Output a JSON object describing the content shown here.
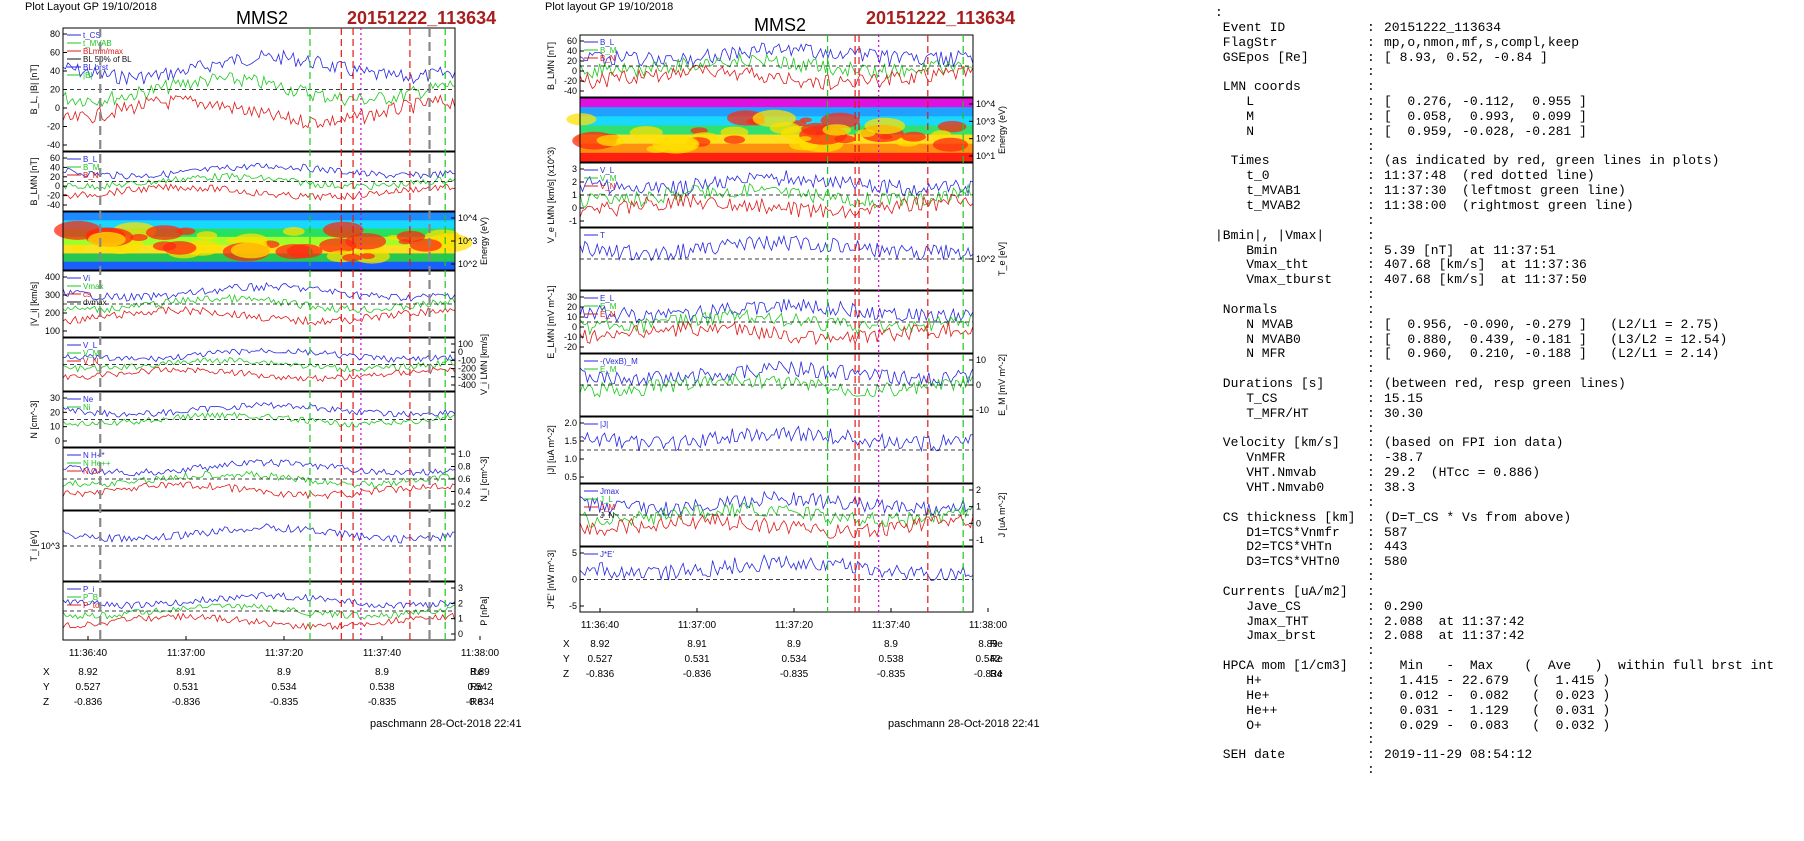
{
  "left_plot": {
    "header": "Plot Layout GP 19/10/2018",
    "spacecraft": "MMS2",
    "event_id": "20151222_113634",
    "footer": "paschmann 28-Oct-2018 22:41",
    "time_ticks": [
      "11:36:40",
      "11:37:00",
      "11:37:20",
      "11:37:40",
      "11:38:00"
    ],
    "orbit_table": {
      "rows": [
        {
          "label": "X",
          "values": [
            "8.92",
            "8.91",
            "8.9",
            "8.9",
            "8.89"
          ],
          "unit": "Re"
        },
        {
          "label": "Y",
          "values": [
            "0.527",
            "0.531",
            "0.534",
            "0.538",
            "0.542"
          ],
          "unit": "Re"
        },
        {
          "label": "Z",
          "values": [
            "-0.836",
            "-0.836",
            "-0.835",
            "-0.835",
            "-0.834"
          ],
          "unit": "Re"
        }
      ]
    },
    "panels": [
      {
        "ylabel": "B_L, |B| [nT]",
        "ticks": [
          "80",
          "60",
          "40",
          "20",
          "0",
          "-20",
          "-40"
        ],
        "legend": [
          "t_CS",
          "t_MVAB",
          "BLmin/max",
          "BL 50% of BL",
          "BL brst",
          "|B|"
        ]
      },
      {
        "ylabel": "B_LMN [nT]",
        "ticks": [
          "60",
          "40",
          "20",
          "0",
          "-20",
          "-40"
        ],
        "legend": [
          "B_L",
          "B_M",
          "B_N"
        ]
      },
      {
        "ylabel": "Energy (eV)",
        "right_ticks": [
          "10^4",
          "10^3",
          "10^2"
        ]
      },
      {
        "ylabel": "|V_i| [km/s]",
        "ticks": [
          "400",
          "300",
          "200",
          "100"
        ],
        "legend": [
          "Vi",
          "Vmax",
          "cs",
          "dvmax"
        ]
      },
      {
        "ylabel": "V_i LMN [km/s]",
        "right_ticks": [
          "100",
          "0",
          "-100",
          "-200",
          "-300",
          "-400"
        ],
        "legend": [
          "V_L",
          "V_M",
          "V_N"
        ]
      },
      {
        "ylabel": "N [cm^-3]",
        "ticks": [
          "30",
          "20",
          "10",
          "0"
        ],
        "legend": [
          "Ne",
          "Ni"
        ]
      },
      {
        "ylabel": "N_i [cm^-3]",
        "right_ticks": [
          "1.0",
          "0.8",
          "0.6",
          "0.4",
          "0.2"
        ],
        "legend": [
          "N H+*",
          "N He++",
          "N O+"
        ]
      },
      {
        "ylabel": "T_i [eV]",
        "ticks": [
          "10^3"
        ]
      },
      {
        "ylabel": "P [nPa]",
        "right_ticks": [
          "3",
          "2",
          "1",
          "0"
        ],
        "legend": [
          "P_i",
          "P_B",
          "P_tot"
        ]
      }
    ]
  },
  "right_plot": {
    "header": "Plot layout GP 19/10/2018",
    "spacecraft": "MMS2",
    "event_id": "20151222_113634",
    "footer": "paschmann 28-Oct-2018 22:41",
    "time_ticks": [
      "11:36:40",
      "11:37:00",
      "11:37:20",
      "11:37:40",
      "11:38:00"
    ],
    "orbit_table": {
      "rows": [
        {
          "label": "X",
          "values": [
            "8.92",
            "8.91",
            "8.9",
            "8.9",
            "8.89"
          ],
          "unit": "Re"
        },
        {
          "label": "Y",
          "values": [
            "0.527",
            "0.531",
            "0.534",
            "0.538",
            "0.542"
          ],
          "unit": "Re"
        },
        {
          "label": "Z",
          "values": [
            "-0.836",
            "-0.836",
            "-0.835",
            "-0.835",
            "-0.834"
          ],
          "unit": "Re"
        }
      ]
    },
    "panels": [
      {
        "ylabel": "B_LMN [nT]",
        "ticks": [
          "60",
          "40",
          "20",
          "0",
          "-20",
          "-40"
        ],
        "legend": [
          "B_L",
          "B_M",
          "B_N"
        ]
      },
      {
        "ylabel": "Energy (eV)",
        "right_ticks": [
          "10^4",
          "10^3",
          "10^2",
          "10^1"
        ]
      },
      {
        "ylabel": "V_e LMN [km/s] (x10^3)",
        "ticks": [
          "3",
          "2",
          "1",
          "0",
          "-1"
        ],
        "legend": [
          "V_L",
          "V_M",
          "V_N"
        ]
      },
      {
        "ylabel": "T_e [eV]",
        "right_ticks": [
          "10^2"
        ],
        "legend": [
          "T"
        ]
      },
      {
        "ylabel": "E_LMN [mV m^-1]",
        "ticks": [
          "30",
          "20",
          "10",
          "0",
          "-10",
          "-20"
        ],
        "legend": [
          "E_L",
          "E_M",
          "E_N"
        ]
      },
      {
        "ylabel": "E_M [mV m^-2]",
        "right_ticks": [
          "10",
          "0",
          "-10"
        ],
        "legend": [
          "-(VexB)_M",
          "E_M"
        ]
      },
      {
        "ylabel": "|J| [uA m^-2]",
        "ticks": [
          "2.0",
          "1.5",
          "1.0",
          "0.5"
        ],
        "legend": [
          "|J|"
        ]
      },
      {
        "ylabel": "J [uA m^-2]",
        "right_ticks": [
          "2",
          "1",
          "0",
          "-1"
        ],
        "legend": [
          "Jmax",
          "J_L",
          "J_M",
          "J_N"
        ]
      },
      {
        "ylabel": "J*E' [nW m^-3]",
        "ticks": [
          "5",
          "0",
          "-5"
        ],
        "legend": [
          "J*E'"
        ]
      }
    ]
  },
  "summary": {
    "leading": ":",
    "rows": [
      {
        "k": " Event ID",
        "v": "20151222_113634"
      },
      {
        "k": " FlagStr",
        "v": "mp,o,nmon,mf,s,compl,keep"
      },
      {
        "k": " GSEpos [Re]",
        "v": "[ 8.93, 0.52, -0.84 ]"
      },
      {
        "k": "",
        "v": ""
      },
      {
        "k": " LMN coords",
        "v": ""
      },
      {
        "k": "    L",
        "v": "[  0.276, -0.112,  0.955 ]"
      },
      {
        "k": "    M",
        "v": "[  0.058,  0.993,  0.099 ]"
      },
      {
        "k": "    N",
        "v": "[  0.959, -0.028, -0.281 ]"
      },
      {
        "k": "",
        "v": ""
      },
      {
        "k": "  Times",
        "v": "(as indicated by red, green lines in plots)"
      },
      {
        "k": "    t_0",
        "v": "11:37:48  (red dotted line)"
      },
      {
        "k": "    t_MVAB1",
        "v": "11:37:30  (leftmost green line)"
      },
      {
        "k": "    t_MVAB2",
        "v": "11:38:00  (rightmost green line)"
      },
      {
        "k": "",
        "v": ""
      },
      {
        "k": "|Bmin|, |Vmax|",
        "v": ""
      },
      {
        "k": "    Bmin",
        "v": "5.39 [nT]  at 11:37:51"
      },
      {
        "k": "    Vmax_tht",
        "v": "407.68 [km/s]  at 11:37:36"
      },
      {
        "k": "    Vmax_tburst",
        "v": "407.68 [km/s]  at 11:37:50"
      },
      {
        "k": "",
        "v": ""
      },
      {
        "k": " Normals",
        "v": ""
      },
      {
        "k": "    N MVAB",
        "v": "[  0.956, -0.090, -0.279 ]   (L2/L1 = 2.75)"
      },
      {
        "k": "    N MVAB0",
        "v": "[  0.880,  0.439, -0.181 ]   (L3/L2 = 12.54)"
      },
      {
        "k": "    N MFR",
        "v": "[  0.960,  0.210, -0.188 ]   (L2/L1 = 2.14)"
      },
      {
        "k": "",
        "v": ""
      },
      {
        "k": " Durations [s]",
        "v": "(between red, resp green lines)"
      },
      {
        "k": "    T_CS",
        "v": "15.15"
      },
      {
        "k": "    T_MFR/HT",
        "v": "30.30"
      },
      {
        "k": "",
        "v": ""
      },
      {
        "k": " Velocity [km/s]",
        "v": "(based on FPI ion data)"
      },
      {
        "k": "    VnMFR",
        "v": "-38.7"
      },
      {
        "k": "    VHT.Nmvab",
        "v": "29.2  (HTcc = 0.886)"
      },
      {
        "k": "    VHT.Nmvab0",
        "v": "38.3"
      },
      {
        "k": "",
        "v": ""
      },
      {
        "k": " CS thickness [km]",
        "v": "(D=T_CS * Vs from above)"
      },
      {
        "k": "    D1=TCS*Vnmfr",
        "v": "587"
      },
      {
        "k": "    D2=TCS*VHTn",
        "v": "443"
      },
      {
        "k": "    D3=TCS*VHTn0",
        "v": "580"
      },
      {
        "k": "",
        "v": ""
      },
      {
        "k": " Currents [uA/m2]",
        "v": ""
      },
      {
        "k": "    Jave_CS",
        "v": "0.290"
      },
      {
        "k": "    Jmax_THT",
        "v": "2.088  at 11:37:42"
      },
      {
        "k": "    Jmax_brst",
        "v": "2.088  at 11:37:42"
      },
      {
        "k": "",
        "v": ""
      },
      {
        "k": " HPCA mom [1/cm3]",
        "v": "  Min   -  Max    (  Ave   )  within full brst int"
      },
      {
        "k": "    H+",
        "v": "  1.415 - 22.679   (  1.415 )"
      },
      {
        "k": "    He+",
        "v": "  0.012 -  0.082   (  0.023 )"
      },
      {
        "k": "    He++",
        "v": "  0.031 -  1.129   (  0.031 )"
      },
      {
        "k": "    O+",
        "v": "  0.029 -  0.083   (  0.032 )"
      },
      {
        "k": "",
        "v": ""
      },
      {
        "k": " SEH date",
        "v": "2019-11-29 08:54:12"
      },
      {
        "k": "",
        "v": ""
      }
    ]
  },
  "chart_data": [
    {
      "type": "line",
      "title": "MMS2",
      "subtitle": "20151222_113634",
      "xlabel": "",
      "x_ticks": [
        "11:36:40",
        "11:37:00",
        "11:37:20",
        "11:37:40",
        "11:38:00"
      ],
      "series": [
        {
          "name": "B_L",
          "y_range": [
            -45,
            70
          ],
          "min": -42,
          "max": 68
        }
      ],
      "grid": false
    },
    {
      "type": "line",
      "title": "MMS2",
      "subtitle": "20151222_113634",
      "xlabel": "",
      "x_ticks": [
        "11:36:40",
        "11:37:00",
        "11:37:20",
        "11:37:40",
        "11:38:00"
      ],
      "series": [
        {
          "name": "B_L",
          "y_range": [
            -40,
            65
          ]
        }
      ],
      "grid": false
    }
  ],
  "colors": {
    "id_red": "#a81d1d",
    "blue": "#2828e0",
    "red": "#e01818",
    "green": "#1ec81e",
    "black": "#111111",
    "magenta": "#d000d0",
    "gray": "#888888"
  }
}
